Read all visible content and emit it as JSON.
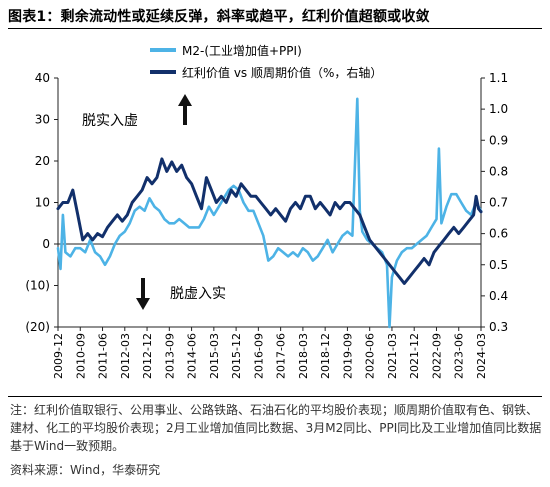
{
  "title": "图表1：剩余流动性或延续反弹，斜率或趋平，红利价值超额或收敛",
  "notes": "注：红利价值取银行、公用事业、公路铁路、石油石化的平均股价表现；顺周期价值取有色、钢铁、建材、化工的平均股价表现；2月工业增加值同比数据、3月M2同比、PPI同比及工业增加值同比数据基于Wind一致预期。",
  "source": "资料来源：Wind，华泰研究",
  "chart_data": {
    "type": "line",
    "legend_position": "top",
    "colors": {
      "m2": "#4db3e6",
      "ratio": "#12306b",
      "arrow": "#111111",
      "axis": "#222222"
    },
    "y_left": {
      "min": -20,
      "max": 40,
      "ticks": [
        -20,
        -10,
        0,
        10,
        20,
        30,
        40
      ],
      "tick_labels": [
        "(20)",
        "(10)",
        "0",
        "10",
        "20",
        "30",
        "40"
      ]
    },
    "y_right": {
      "min": 0.3,
      "max": 1.1,
      "ticks": [
        0.3,
        0.4,
        0.5,
        0.6,
        0.7,
        0.8,
        0.9,
        1.0,
        1.1
      ],
      "tick_labels": [
        "0.3",
        "0.4",
        "0.5",
        "0.6",
        "0.7",
        "0.8",
        "0.9",
        "1.0",
        "1.1"
      ]
    },
    "x_range": [
      "2009-12",
      "2024-03"
    ],
    "x_ticks": [
      "2009-12",
      "2010-09",
      "2011-06",
      "2012-03",
      "2012-12",
      "2013-09",
      "2014-06",
      "2015-03",
      "2015-12",
      "2016-09",
      "2017-06",
      "2018-03",
      "2018-12",
      "2019-09",
      "2020-06",
      "2021-03",
      "2021-12",
      "2022-09",
      "2023-06",
      "2024-03"
    ],
    "annotations": [
      {
        "text": "脱实入虚",
        "arrow": "up"
      },
      {
        "text": "脱虚入实",
        "arrow": "down"
      }
    ],
    "series": [
      {
        "name": "M2-(工业增加值+PPI)",
        "axis": "left",
        "points": [
          [
            "2009-12",
            -1
          ],
          [
            "2010-01",
            -6
          ],
          [
            "2010-02",
            7
          ],
          [
            "2010-03",
            -2
          ],
          [
            "2010-05",
            -3
          ],
          [
            "2010-07",
            -1
          ],
          [
            "2010-09",
            -1
          ],
          [
            "2010-11",
            -2
          ],
          [
            "2011-01",
            1
          ],
          [
            "2011-03",
            -2
          ],
          [
            "2011-05",
            -3
          ],
          [
            "2011-07",
            -5
          ],
          [
            "2011-09",
            -3
          ],
          [
            "2011-11",
            0
          ],
          [
            "2012-01",
            2
          ],
          [
            "2012-03",
            3
          ],
          [
            "2012-05",
            5
          ],
          [
            "2012-07",
            8
          ],
          [
            "2012-09",
            9
          ],
          [
            "2012-11",
            8
          ],
          [
            "2013-01",
            11
          ],
          [
            "2013-03",
            9
          ],
          [
            "2013-05",
            8
          ],
          [
            "2013-07",
            6
          ],
          [
            "2013-09",
            5
          ],
          [
            "2013-11",
            5
          ],
          [
            "2014-01",
            6
          ],
          [
            "2014-03",
            5
          ],
          [
            "2014-05",
            4
          ],
          [
            "2014-07",
            4
          ],
          [
            "2014-09",
            4
          ],
          [
            "2014-11",
            6
          ],
          [
            "2015-01",
            9
          ],
          [
            "2015-03",
            7
          ],
          [
            "2015-05",
            9
          ],
          [
            "2015-07",
            11
          ],
          [
            "2015-09",
            13
          ],
          [
            "2015-11",
            14
          ],
          [
            "2016-01",
            13
          ],
          [
            "2016-03",
            10
          ],
          [
            "2016-05",
            8
          ],
          [
            "2016-07",
            8
          ],
          [
            "2016-09",
            5
          ],
          [
            "2016-11",
            2
          ],
          [
            "2017-01",
            -4
          ],
          [
            "2017-03",
            -3
          ],
          [
            "2017-05",
            -1
          ],
          [
            "2017-07",
            -2
          ],
          [
            "2017-09",
            -3
          ],
          [
            "2017-11",
            -2
          ],
          [
            "2018-01",
            -3
          ],
          [
            "2018-03",
            -1
          ],
          [
            "2018-05",
            -2
          ],
          [
            "2018-07",
            -4
          ],
          [
            "2018-09",
            -3
          ],
          [
            "2018-11",
            -1
          ],
          [
            "2019-01",
            1
          ],
          [
            "2019-03",
            -2
          ],
          [
            "2019-05",
            0
          ],
          [
            "2019-07",
            2
          ],
          [
            "2019-09",
            3
          ],
          [
            "2019-11",
            2
          ],
          [
            "2020-01",
            35
          ],
          [
            "2020-02",
            8
          ],
          [
            "2020-03",
            3
          ],
          [
            "2020-05",
            1
          ],
          [
            "2020-07",
            0
          ],
          [
            "2020-09",
            -1
          ],
          [
            "2020-11",
            -2
          ],
          [
            "2021-01",
            -5
          ],
          [
            "2021-02",
            -20
          ],
          [
            "2021-03",
            -8
          ],
          [
            "2021-05",
            -4
          ],
          [
            "2021-07",
            -2
          ],
          [
            "2021-09",
            -1
          ],
          [
            "2021-11",
            -1
          ],
          [
            "2022-01",
            0
          ],
          [
            "2022-03",
            1
          ],
          [
            "2022-05",
            2
          ],
          [
            "2022-07",
            4
          ],
          [
            "2022-09",
            6
          ],
          [
            "2022-10",
            23
          ],
          [
            "2022-11",
            5
          ],
          [
            "2023-01",
            9
          ],
          [
            "2023-03",
            12
          ],
          [
            "2023-05",
            12
          ],
          [
            "2023-07",
            10
          ],
          [
            "2023-09",
            8
          ],
          [
            "2023-11",
            7
          ],
          [
            "2024-01",
            10
          ],
          [
            "2024-03",
            8
          ]
        ]
      },
      {
        "name": "红利价值 vs 顺周期价值（%，右轴）",
        "axis": "right",
        "points": [
          [
            "2009-12",
            0.68
          ],
          [
            "2010-02",
            0.7
          ],
          [
            "2010-04",
            0.7
          ],
          [
            "2010-06",
            0.74
          ],
          [
            "2010-08",
            0.66
          ],
          [
            "2010-10",
            0.58
          ],
          [
            "2010-12",
            0.6
          ],
          [
            "2011-02",
            0.58
          ],
          [
            "2011-04",
            0.6
          ],
          [
            "2011-06",
            0.59
          ],
          [
            "2011-08",
            0.62
          ],
          [
            "2011-10",
            0.64
          ],
          [
            "2011-12",
            0.66
          ],
          [
            "2012-02",
            0.64
          ],
          [
            "2012-04",
            0.66
          ],
          [
            "2012-06",
            0.7
          ],
          [
            "2012-08",
            0.72
          ],
          [
            "2012-10",
            0.74
          ],
          [
            "2012-12",
            0.78
          ],
          [
            "2013-02",
            0.76
          ],
          [
            "2013-04",
            0.78
          ],
          [
            "2013-06",
            0.84
          ],
          [
            "2013-08",
            0.8
          ],
          [
            "2013-10",
            0.83
          ],
          [
            "2013-12",
            0.8
          ],
          [
            "2014-02",
            0.82
          ],
          [
            "2014-04",
            0.78
          ],
          [
            "2014-06",
            0.76
          ],
          [
            "2014-08",
            0.72
          ],
          [
            "2014-10",
            0.68
          ],
          [
            "2014-12",
            0.78
          ],
          [
            "2015-02",
            0.74
          ],
          [
            "2015-04",
            0.7
          ],
          [
            "2015-06",
            0.72
          ],
          [
            "2015-08",
            0.7
          ],
          [
            "2015-10",
            0.74
          ],
          [
            "2015-12",
            0.72
          ],
          [
            "2016-02",
            0.76
          ],
          [
            "2016-04",
            0.74
          ],
          [
            "2016-06",
            0.72
          ],
          [
            "2016-08",
            0.72
          ],
          [
            "2016-10",
            0.7
          ],
          [
            "2016-12",
            0.68
          ],
          [
            "2017-02",
            0.66
          ],
          [
            "2017-04",
            0.68
          ],
          [
            "2017-06",
            0.66
          ],
          [
            "2017-08",
            0.64
          ],
          [
            "2017-10",
            0.68
          ],
          [
            "2017-12",
            0.7
          ],
          [
            "2018-02",
            0.68
          ],
          [
            "2018-04",
            0.72
          ],
          [
            "2018-06",
            0.72
          ],
          [
            "2018-08",
            0.68
          ],
          [
            "2018-10",
            0.7
          ],
          [
            "2018-12",
            0.68
          ],
          [
            "2019-02",
            0.66
          ],
          [
            "2019-04",
            0.7
          ],
          [
            "2019-06",
            0.68
          ],
          [
            "2019-08",
            0.7
          ],
          [
            "2019-10",
            0.7
          ],
          [
            "2019-12",
            0.68
          ],
          [
            "2020-02",
            0.66
          ],
          [
            "2020-04",
            0.62
          ],
          [
            "2020-06",
            0.58
          ],
          [
            "2020-08",
            0.56
          ],
          [
            "2020-10",
            0.54
          ],
          [
            "2020-12",
            0.52
          ],
          [
            "2021-02",
            0.5
          ],
          [
            "2021-04",
            0.48
          ],
          [
            "2021-06",
            0.46
          ],
          [
            "2021-08",
            0.44
          ],
          [
            "2021-10",
            0.46
          ],
          [
            "2021-12",
            0.48
          ],
          [
            "2022-02",
            0.5
          ],
          [
            "2022-04",
            0.52
          ],
          [
            "2022-06",
            0.5
          ],
          [
            "2022-08",
            0.54
          ],
          [
            "2022-10",
            0.56
          ],
          [
            "2022-12",
            0.58
          ],
          [
            "2023-02",
            0.6
          ],
          [
            "2023-04",
            0.62
          ],
          [
            "2023-06",
            0.6
          ],
          [
            "2023-08",
            0.62
          ],
          [
            "2023-10",
            0.64
          ],
          [
            "2023-12",
            0.66
          ],
          [
            "2024-01",
            0.72
          ],
          [
            "2024-02",
            0.68
          ],
          [
            "2024-03",
            0.67
          ]
        ]
      }
    ]
  }
}
